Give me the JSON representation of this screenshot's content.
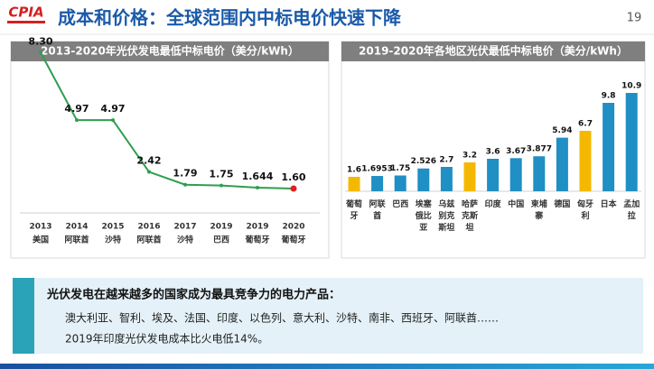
{
  "header": {
    "logo": "CPIA",
    "title": "成本和价格：全球范围内中标电价快速下降",
    "page_number": "19"
  },
  "chart_data": [
    {
      "type": "line",
      "title": "2013-2020年光伏发电最低中标电价（美分/kWh）",
      "categories": [
        "2013",
        "2014",
        "2015",
        "2016",
        "2017",
        "2019",
        "2019",
        "2020"
      ],
      "category_sublabels": [
        "美国",
        "阿联酋",
        "沙特",
        "阿联酋",
        "沙特",
        "巴西",
        "葡萄牙",
        "葡萄牙"
      ],
      "values": [
        8.3,
        4.97,
        4.97,
        2.42,
        1.79,
        1.75,
        1.644,
        1.6
      ],
      "value_labels": [
        "8.30",
        "4.97",
        "4.97",
        "2.42",
        "1.79",
        "1.75",
        "1.644",
        "1.60"
      ],
      "color": "#2e9e4f",
      "marker_colors": [
        "#2e9e4f",
        "#2e9e4f",
        "#2e9e4f",
        "#2e9e4f",
        "#2e9e4f",
        "#2e9e4f",
        "#2e9e4f",
        "#e02020"
      ]
    },
    {
      "type": "bar",
      "title": "2019-2020年各地区光伏最低中标电价（美分/kWh）",
      "categories": [
        "葡萄牙",
        "阿联酋",
        "巴西",
        "埃塞俄比亚",
        "乌兹别克斯坦",
        "哈萨克斯坦",
        "印度",
        "中国",
        "柬埔寨",
        "德国",
        "匈牙利",
        "日本",
        "孟加拉"
      ],
      "values": [
        1.6,
        1.6953,
        1.75,
        2.526,
        2.7,
        3.2,
        3.6,
        3.67,
        3.877,
        5.94,
        6.7,
        9.8,
        10.9
      ],
      "colors": [
        "#f5b800",
        "#1f8fc4",
        "#1f8fc4",
        "#1f8fc4",
        "#1f8fc4",
        "#f5b800",
        "#1f8fc4",
        "#1f8fc4",
        "#1f8fc4",
        "#1f8fc4",
        "#f5b800",
        "#1f8fc4",
        "#1f8fc4"
      ]
    }
  ],
  "note": {
    "heading": "光伏发电在越来越多的国家成为最具竞争力的电力产品：",
    "lines": [
      "澳大利亚、智利、埃及、法国、印度、以色列、意大利、沙特、南非、西班牙、阿联酋……",
      "2019年印度光伏发电成本比火电低14%。"
    ]
  }
}
